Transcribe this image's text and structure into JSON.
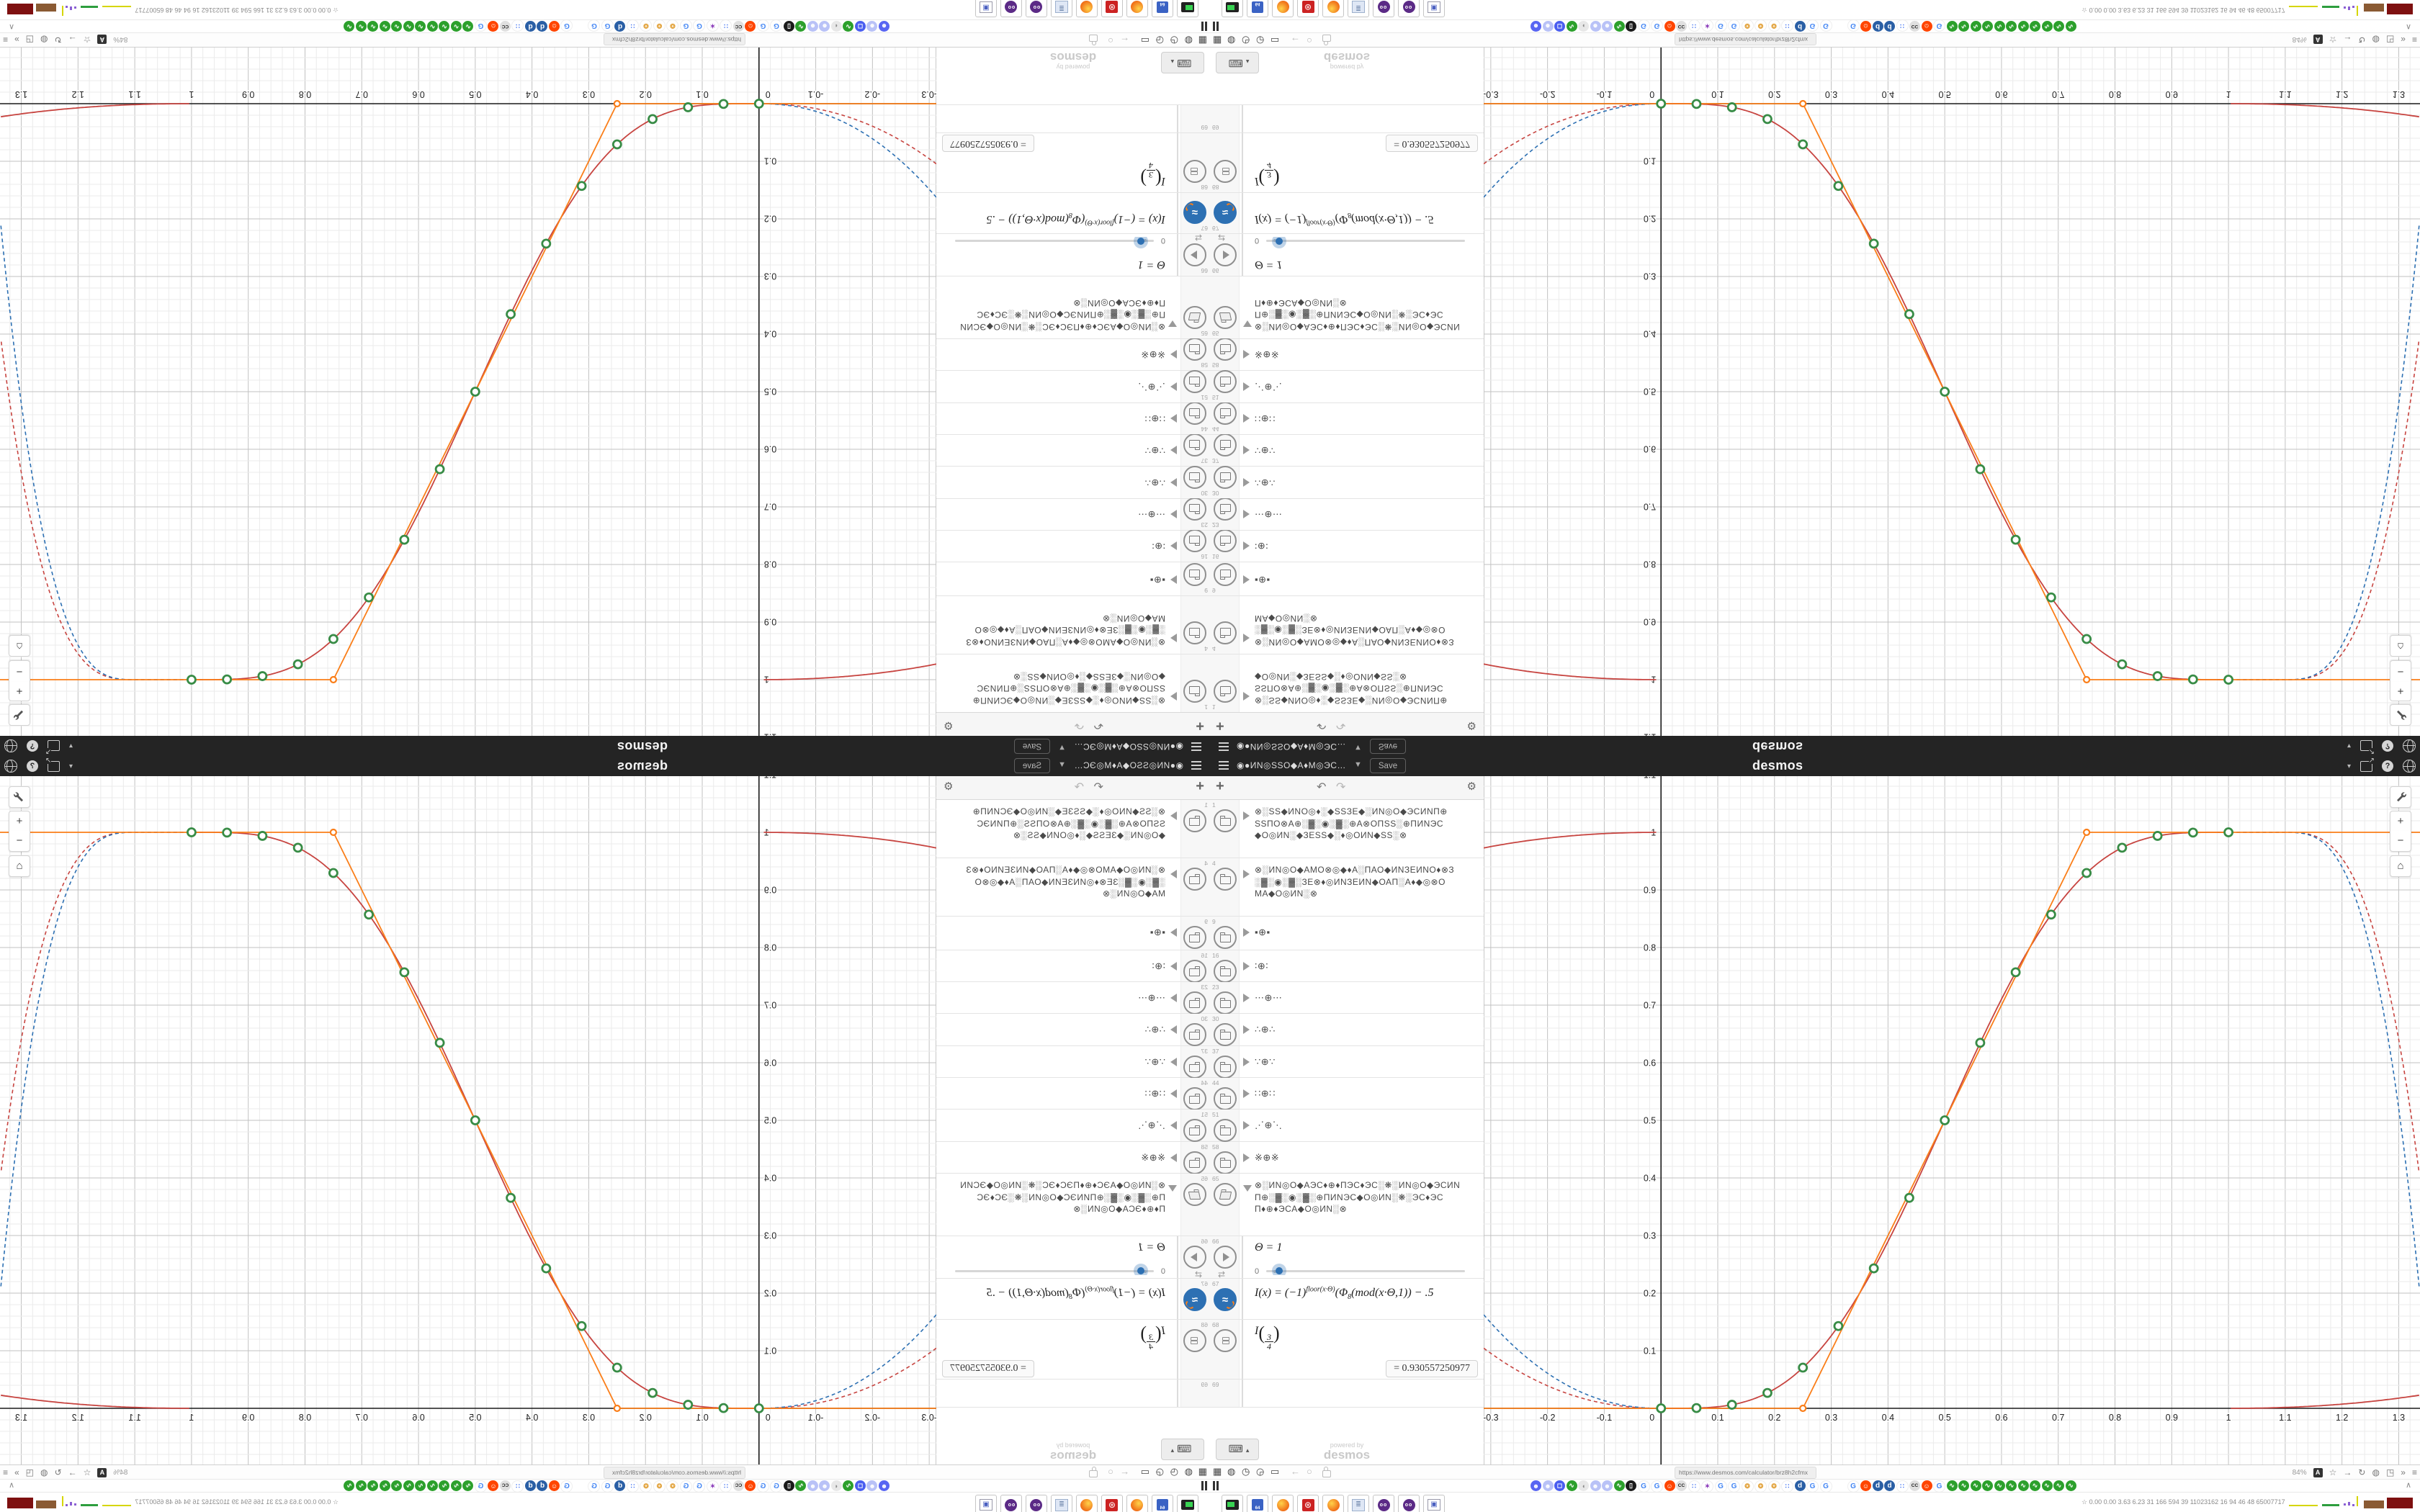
{
  "mirroring": {
    "note": "screen duplicated into 4 quadrants",
    "original": "bottom-right"
  },
  "header": {
    "title": "◉●ИΝ◎ЅЅΟ◆Α♦Μ◎ЭϹ…",
    "caret": "▼",
    "save_label": "Save",
    "logo": "desmos",
    "lang_caret": "▾",
    "share_arrow": "↗",
    "help_label": "?"
  },
  "panel": {
    "toolbar": {
      "add": "+",
      "undo": "↶",
      "redo": "↷",
      "gear": "⚙"
    },
    "rows": [
      {
        "num": "1",
        "type": "folder",
        "open": false,
        "lines": [
          "⊗░ЅЅ◆ИΝΟ◎♦░◆ЅЅЗΕ◆░ИΝ◎Ο◆ЭϹИΝΠ⊕",
          "ЅЅΠΟ⊗Α⊕░▓░◉░▓░⊕Α⊗ΟΠЅЅ░⊕ΠИΝЭϹ",
          "◆Ο◎ИΝ░◆ЗΕЅЅ◆░♦◎ΟИΝ◆ЅЅ░⊗"
        ]
      },
      {
        "num": "4",
        "type": "folder",
        "open": false,
        "lines": [
          "⊗░ИΝ◎Ο◆ΑΜΟ⊗◎◆♦Α░ΠΑΟ◆ИΝЗΕИΝΟ♦⊗З",
          "░▓░◉░▓░ЗΕ⊗♦◎ИΝЗΕИΝ◆ΟΑΠ░Α♦◆◎⊗Ο",
          "ΜΑ◆Ο◎ИΝ░⊗"
        ]
      },
      {
        "num": "9",
        "type": "folder",
        "open": false,
        "lines": [
          "▪⊕▪"
        ]
      },
      {
        "num": "16",
        "type": "folder",
        "open": false,
        "lines": [
          "∶⊕∶"
        ]
      },
      {
        "num": "23",
        "type": "folder",
        "open": false,
        "lines": [
          "⋯⊕⋯"
        ]
      },
      {
        "num": "30",
        "type": "folder",
        "open": false,
        "lines": [
          "∴⊕∴"
        ]
      },
      {
        "num": "37",
        "type": "folder",
        "open": false,
        "lines": [
          "∵⊕∵"
        ]
      },
      {
        "num": "44",
        "type": "folder",
        "open": false,
        "lines": [
          "∷⊕∷"
        ]
      },
      {
        "num": "51",
        "type": "folder",
        "open": false,
        "lines": [
          "⋰⊕⋱"
        ]
      },
      {
        "num": "58",
        "type": "folder",
        "open": false,
        "lines": [
          "※⊕※"
        ]
      },
      {
        "num": "65",
        "type": "folder",
        "open": true,
        "lines": [
          "⊗░ИΝ◎Ο◆ΑЭϹ♦⊕♦ΠЭϹ♦ЭϹ░❋░ИΝ◎Ο◆ЭϹИΝ",
          "Π⊕░▓░◉░▓░⊕ΠИΝЭϹ◆Ο◎ИΝ░❋░ЭϹ♦ЭϹ",
          "Π♦⊕♦ЭϹΑ◆Ο◎ИΝ░⊗"
        ]
      },
      {
        "num": "66",
        "type": "slider",
        "label": "Θ = 1",
        "min": "0"
      },
      {
        "num": "67",
        "type": "formula",
        "parts": {
          "a": "I(x) = (−1)",
          "sup": "floor(x·Θ)",
          "b": "(Φ",
          "sub": "8",
          "c": "(mod(x·Θ,1)) − .5"
        }
      },
      {
        "num": "68",
        "type": "eval",
        "fn": "I",
        "numer": "3",
        "denom": "4",
        "value": "= 0.930557250977"
      },
      {
        "num": "69",
        "type": "empty"
      }
    ],
    "footer": {
      "keyboard": "⌨",
      "keyboard_caret": "▴",
      "powered_by": "powered by",
      "powered_brand": "desmos"
    }
  },
  "graph_controls": {
    "wrench": "wrench",
    "zoom_in": "+",
    "zoom_out": "−",
    "home": "⌂"
  },
  "chart_data": {
    "type": "line",
    "title": "",
    "xlabel": "",
    "ylabel": "",
    "xlim": [
      -0.3125,
      1.3375
    ],
    "ylim": [
      -0.0975,
      1.0975
    ],
    "grid": {
      "minor_step": 0.02,
      "major_step": 0.1,
      "grid_on": true
    },
    "x_ticks": [
      "-0.3",
      "-0.2",
      "-0.1",
      "0",
      "0.1",
      "0.2",
      "0.3",
      "0.4",
      "0.5",
      "0.6",
      "0.7",
      "0.8",
      "0.9",
      "1",
      "1.1",
      "1.2",
      "1.3"
    ],
    "y_ticks": [
      "0.1",
      "0.2",
      "0.3",
      "0.4",
      "0.5",
      "0.6",
      "0.7",
      "0.8",
      "0.9",
      "1",
      "1.1"
    ],
    "series": [
      {
        "name": "smoothstep-periodic",
        "color": "#c74440",
        "style": "solid",
        "kind": "main",
        "left_branch": {
          "coef": 0.35,
          "exp": 2.2
        },
        "right_branch": {
          "coef": 0.25,
          "exp": 2.2
        }
      },
      {
        "name": "extension-red",
        "color": "#c74440",
        "style": "dashed",
        "kind": "ext",
        "left": {
          "coef": 1.35,
          "exp": 2.2
        },
        "right": {
          "coef": 45,
          "exp": 3,
          "knee": 1.1
        }
      },
      {
        "name": "extension-blue",
        "color": "#2d70b3",
        "style": "dashed",
        "kind": "ext",
        "left": {
          "coef": 2.1,
          "exp": 2.2
        },
        "right": {
          "coef": 60,
          "exp": 3,
          "knee": 1.1
        }
      },
      {
        "name": "ramp-approximation",
        "color": "#fa7e19",
        "style": "solid",
        "kind": "polyline",
        "points": [
          [
            -0.3125,
            0
          ],
          [
            0.25,
            0
          ],
          [
            0.75,
            1
          ],
          [
            1.3375,
            1
          ]
        ]
      }
    ],
    "sample_points": {
      "color": "#388c46",
      "points": [
        [
          0,
          0
        ],
        [
          0.0625,
          0.0005
        ],
        [
          0.125,
          0.0062
        ],
        [
          0.1875,
          0.0267
        ],
        [
          0.25,
          0.0706
        ],
        [
          0.3125,
          0.1428
        ],
        [
          0.375,
          0.243
        ],
        [
          0.4375,
          0.3654
        ],
        [
          0.5,
          0.5
        ],
        [
          0.5625,
          0.6346
        ],
        [
          0.625,
          0.757
        ],
        [
          0.6875,
          0.8572
        ],
        [
          0.75,
          0.9294
        ],
        [
          0.8125,
          0.9733
        ],
        [
          0.875,
          0.9938
        ],
        [
          0.9375,
          0.9995
        ],
        [
          1,
          1
        ]
      ]
    },
    "anchor_points": {
      "color": "#fa7e19",
      "points": [
        [
          0.25,
          0
        ],
        [
          0.75,
          1
        ]
      ]
    }
  },
  "chrome": {
    "toolbar": {
      "left_icons": [
        "▦",
        "◍",
        "◷",
        "◶",
        "▭"
      ],
      "nav_icons": [
        "←",
        "○"
      ],
      "url": "https://www.desmos.com/calculator/brz8h2cfmx",
      "zoom_level": "84%",
      "translate_label": "A",
      "right_icons": [
        "☆",
        "→",
        "↻",
        "◍",
        "◳",
        "»",
        "≡"
      ]
    },
    "favicons_row": {
      "chevron_up": "∧",
      "icons": [
        "discord",
        "person",
        "chat",
        "wave",
        "fish",
        "person",
        "person",
        "wave",
        "trash",
        "g",
        "g",
        "face",
        "cc",
        "dots",
        "star",
        "g",
        "g",
        "sun",
        "sun",
        "sun",
        "dots",
        "d",
        "g",
        "g",
        "gap",
        "g",
        "face",
        "d",
        "d",
        "dots",
        "cc",
        "face",
        "g",
        "wave",
        "wave",
        "wave",
        "wave",
        "wave",
        "wave",
        "wave",
        "wave",
        "wave",
        "wave",
        "wave"
      ]
    },
    "dock_row": {
      "apps": [
        "terminal",
        "floppy64",
        "firefox",
        "redgear",
        "firefox",
        "scroll",
        "owl",
        "owl",
        "window"
      ],
      "floppy_label": "64",
      "stats_icon": "☆",
      "stats": "0.00 0.00 3.63 6.23  31  166  594  39  11023162  16  94  46  48  65007717"
    }
  }
}
